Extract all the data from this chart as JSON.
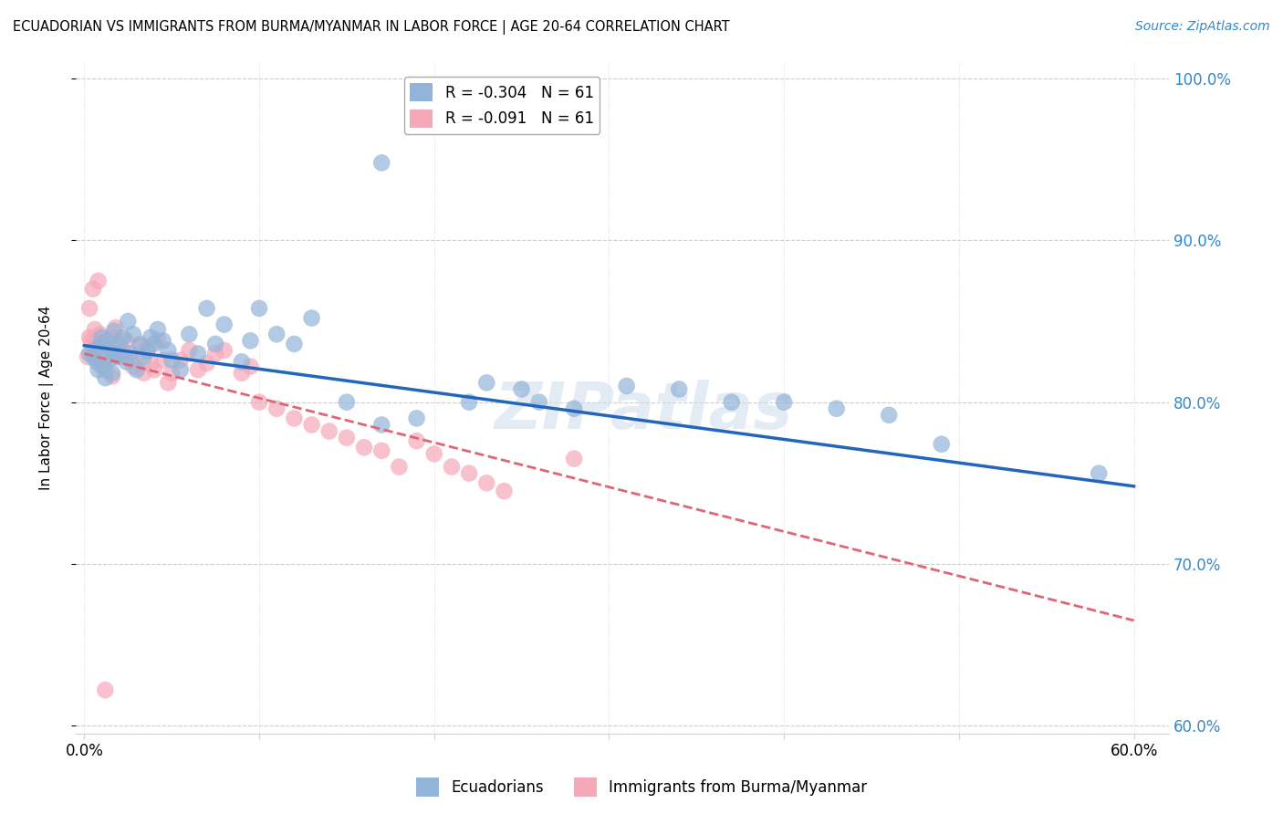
{
  "title": "ECUADORIAN VS IMMIGRANTS FROM BURMA/MYANMAR IN LABOR FORCE | AGE 20-64 CORRELATION CHART",
  "source": "Source: ZipAtlas.com",
  "ylabel": "In Labor Force | Age 20-64",
  "xlim": [
    -0.005,
    0.62
  ],
  "ylim": [
    0.595,
    1.01
  ],
  "yticks": [
    0.6,
    0.7,
    0.8,
    0.9,
    1.0
  ],
  "ytick_labels": [
    "60.0%",
    "70.0%",
    "80.0%",
    "90.0%",
    "100.0%"
  ],
  "xticks": [
    0.0,
    0.1,
    0.2,
    0.3,
    0.4,
    0.5,
    0.6
  ],
  "xtick_labels_show": [
    "0.0%",
    "",
    "",
    "",
    "",
    "",
    "60.0%"
  ],
  "blue_R": "-0.304",
  "blue_N": "61",
  "pink_R": "-0.091",
  "pink_N": "61",
  "blue_color": "#92b4d8",
  "pink_color": "#f5a8b8",
  "blue_line_color": "#2266bb",
  "pink_line_color": "#dd6677",
  "watermark_text": "ZIPatlas",
  "blue_scatter_x": [
    0.003,
    0.005,
    0.006,
    0.007,
    0.008,
    0.009,
    0.01,
    0.011,
    0.012,
    0.013,
    0.014,
    0.015,
    0.016,
    0.017,
    0.018,
    0.019,
    0.02,
    0.022,
    0.024,
    0.025,
    0.026,
    0.028,
    0.03,
    0.032,
    0.034,
    0.036,
    0.038,
    0.04,
    0.042,
    0.045,
    0.048,
    0.05,
    0.055,
    0.06,
    0.065,
    0.07,
    0.075,
    0.08,
    0.09,
    0.095,
    0.1,
    0.11,
    0.12,
    0.13,
    0.15,
    0.17,
    0.19,
    0.22,
    0.25,
    0.28,
    0.31,
    0.34,
    0.37,
    0.4,
    0.43,
    0.46,
    0.49,
    0.23,
    0.26,
    0.58,
    0.17
  ],
  "blue_scatter_y": [
    0.83,
    0.828,
    0.832,
    0.825,
    0.82,
    0.835,
    0.84,
    0.822,
    0.815,
    0.838,
    0.826,
    0.832,
    0.818,
    0.844,
    0.83,
    0.828,
    0.836,
    0.84,
    0.825,
    0.85,
    0.83,
    0.842,
    0.82,
    0.835,
    0.828,
    0.832,
    0.84,
    0.836,
    0.845,
    0.838,
    0.832,
    0.826,
    0.82,
    0.842,
    0.83,
    0.858,
    0.836,
    0.848,
    0.825,
    0.838,
    0.858,
    0.842,
    0.836,
    0.852,
    0.8,
    0.786,
    0.79,
    0.8,
    0.808,
    0.796,
    0.81,
    0.808,
    0.8,
    0.8,
    0.796,
    0.792,
    0.774,
    0.812,
    0.8,
    0.756,
    0.948
  ],
  "pink_scatter_x": [
    0.002,
    0.003,
    0.004,
    0.005,
    0.006,
    0.007,
    0.008,
    0.009,
    0.01,
    0.011,
    0.012,
    0.013,
    0.014,
    0.015,
    0.016,
    0.017,
    0.018,
    0.019,
    0.02,
    0.022,
    0.024,
    0.026,
    0.028,
    0.03,
    0.032,
    0.034,
    0.036,
    0.038,
    0.04,
    0.042,
    0.045,
    0.048,
    0.05,
    0.055,
    0.06,
    0.065,
    0.07,
    0.075,
    0.08,
    0.09,
    0.095,
    0.1,
    0.11,
    0.12,
    0.13,
    0.14,
    0.15,
    0.16,
    0.17,
    0.18,
    0.19,
    0.2,
    0.21,
    0.22,
    0.23,
    0.24,
    0.28,
    0.005,
    0.003,
    0.008,
    0.012
  ],
  "pink_scatter_y": [
    0.828,
    0.84,
    0.838,
    0.832,
    0.845,
    0.836,
    0.83,
    0.842,
    0.822,
    0.826,
    0.82,
    0.838,
    0.832,
    0.84,
    0.816,
    0.836,
    0.846,
    0.828,
    0.83,
    0.832,
    0.838,
    0.826,
    0.822,
    0.828,
    0.836,
    0.818,
    0.832,
    0.824,
    0.82,
    0.838,
    0.826,
    0.812,
    0.818,
    0.826,
    0.832,
    0.82,
    0.824,
    0.83,
    0.832,
    0.818,
    0.822,
    0.8,
    0.796,
    0.79,
    0.786,
    0.782,
    0.778,
    0.772,
    0.77,
    0.76,
    0.776,
    0.768,
    0.76,
    0.756,
    0.75,
    0.745,
    0.765,
    0.87,
    0.858,
    0.875,
    0.622
  ],
  "blue_trendline_x": [
    0.0,
    0.6
  ],
  "blue_trendline_y": [
    0.835,
    0.748
  ],
  "pink_trendline_x": [
    0.0,
    0.6
  ],
  "pink_trendline_y": [
    0.83,
    0.665
  ]
}
